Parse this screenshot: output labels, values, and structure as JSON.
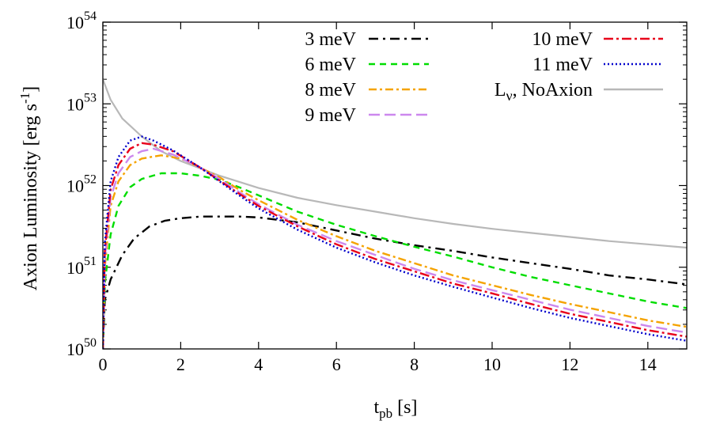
{
  "chart_data": {
    "type": "line",
    "xlabel": {
      "main": "t",
      "sub": "pb",
      "rest": " [s]"
    },
    "ylabel": "Axion Luminosity [erg s",
    "ylabel_sup": "-1",
    "ylabel_close": "]",
    "xlim": [
      0,
      15
    ],
    "ylim_log10": [
      50,
      54
    ],
    "yscale": "log",
    "x_ticks": [
      0,
      2,
      4,
      6,
      8,
      10,
      12,
      14
    ],
    "y_ticks": [
      {
        "base": "10",
        "exp": "50",
        "value": 50
      },
      {
        "base": "10",
        "exp": "51",
        "value": 51
      },
      {
        "base": "10",
        "exp": "52",
        "value": 52
      },
      {
        "base": "10",
        "exp": "53",
        "value": 53
      },
      {
        "base": "10",
        "exp": "54",
        "value": 54
      }
    ],
    "grid": false,
    "legend_position": "top-right",
    "series": [
      {
        "name": "3 meV",
        "color": "#000000",
        "dash": "12,6,3,6",
        "points": [
          [
            0,
            50
          ],
          [
            0.05,
            50.6
          ],
          [
            0.2,
            50.85
          ],
          [
            0.5,
            51.15
          ],
          [
            0.8,
            51.35
          ],
          [
            1.2,
            51.5
          ],
          [
            1.6,
            51.57
          ],
          [
            2,
            51.6
          ],
          [
            2.5,
            51.62
          ],
          [
            3,
            51.62
          ],
          [
            3.5,
            51.62
          ],
          [
            4,
            51.61
          ],
          [
            5,
            51.55
          ],
          [
            6,
            51.45
          ],
          [
            7,
            51.35
          ],
          [
            8,
            51.27
          ],
          [
            9,
            51.2
          ],
          [
            10,
            51.12
          ],
          [
            11,
            51.05
          ],
          [
            12,
            50.98
          ],
          [
            13,
            50.9
          ],
          [
            14,
            50.85
          ],
          [
            15,
            50.79
          ]
        ]
      },
      {
        "name": "6 meV",
        "color": "#00dd00",
        "dash": "8,6",
        "points": [
          [
            0,
            50
          ],
          [
            0.05,
            50.8
          ],
          [
            0.2,
            51.4
          ],
          [
            0.4,
            51.75
          ],
          [
            0.7,
            51.98
          ],
          [
            1,
            52.08
          ],
          [
            1.5,
            52.15
          ],
          [
            2,
            52.15
          ],
          [
            2.5,
            52.12
          ],
          [
            3,
            52.07
          ],
          [
            3.5,
            51.98
          ],
          [
            4,
            51.88
          ],
          [
            5,
            51.68
          ],
          [
            6,
            51.52
          ],
          [
            7,
            51.38
          ],
          [
            8,
            51.25
          ],
          [
            9,
            51.13
          ],
          [
            10,
            51.0
          ],
          [
            11,
            50.88
          ],
          [
            12,
            50.78
          ],
          [
            13,
            50.68
          ],
          [
            14,
            50.58
          ],
          [
            15,
            50.5
          ]
        ]
      },
      {
        "name": "8 meV",
        "color": "#f5a300",
        "dash": "10,4,3,4",
        "points": [
          [
            0,
            50
          ],
          [
            0.05,
            51.0
          ],
          [
            0.2,
            51.75
          ],
          [
            0.4,
            52.05
          ],
          [
            0.7,
            52.25
          ],
          [
            1,
            52.33
          ],
          [
            1.5,
            52.37
          ],
          [
            2,
            52.33
          ],
          [
            2.5,
            52.22
          ],
          [
            3,
            52.1
          ],
          [
            3.5,
            51.95
          ],
          [
            4,
            51.82
          ],
          [
            5,
            51.58
          ],
          [
            6,
            51.38
          ],
          [
            7,
            51.2
          ],
          [
            8,
            51.05
          ],
          [
            9,
            50.9
          ],
          [
            10,
            50.78
          ],
          [
            11,
            50.66
          ],
          [
            12,
            50.55
          ],
          [
            13,
            50.45
          ],
          [
            14,
            50.35
          ],
          [
            15,
            50.27
          ]
        ]
      },
      {
        "name": "9 meV",
        "color": "#cc88ee",
        "dash": "14,6",
        "points": [
          [
            0,
            50
          ],
          [
            0.05,
            51.1
          ],
          [
            0.2,
            51.85
          ],
          [
            0.4,
            52.15
          ],
          [
            0.7,
            52.35
          ],
          [
            1,
            52.42
          ],
          [
            1.3,
            52.45
          ],
          [
            1.8,
            52.38
          ],
          [
            2.5,
            52.22
          ],
          [
            3,
            52.08
          ],
          [
            3.5,
            51.92
          ],
          [
            4,
            51.77
          ],
          [
            5,
            51.52
          ],
          [
            6,
            51.32
          ],
          [
            7,
            51.15
          ],
          [
            8,
            50.98
          ],
          [
            9,
            50.84
          ],
          [
            10,
            50.72
          ],
          [
            11,
            50.6
          ],
          [
            12,
            50.48
          ],
          [
            13,
            50.38
          ],
          [
            14,
            50.28
          ],
          [
            15,
            50.2
          ]
        ]
      },
      {
        "name": "10 meV",
        "color": "#e8001a",
        "dash": "12,4,3,4",
        "points": [
          [
            0,
            50
          ],
          [
            0.05,
            51.2
          ],
          [
            0.2,
            51.95
          ],
          [
            0.4,
            52.25
          ],
          [
            0.7,
            52.45
          ],
          [
            1,
            52.52
          ],
          [
            1.3,
            52.5
          ],
          [
            1.8,
            52.42
          ],
          [
            2.5,
            52.22
          ],
          [
            3,
            52.06
          ],
          [
            3.5,
            51.9
          ],
          [
            4,
            51.75
          ],
          [
            5,
            51.5
          ],
          [
            6,
            51.28
          ],
          [
            7,
            51.1
          ],
          [
            8,
            50.95
          ],
          [
            9,
            50.8
          ],
          [
            10,
            50.68
          ],
          [
            11,
            50.55
          ],
          [
            12,
            50.43
          ],
          [
            13,
            50.33
          ],
          [
            14,
            50.23
          ],
          [
            15,
            50.15
          ]
        ]
      },
      {
        "name": "11 meV",
        "color": "#0000cc",
        "dash": "2,3",
        "points": [
          [
            0,
            50
          ],
          [
            0.05,
            51.3
          ],
          [
            0.2,
            52.05
          ],
          [
            0.4,
            52.35
          ],
          [
            0.7,
            52.55
          ],
          [
            1,
            52.6
          ],
          [
            1.3,
            52.55
          ],
          [
            1.8,
            52.43
          ],
          [
            2.5,
            52.22
          ],
          [
            3,
            52.05
          ],
          [
            3.5,
            51.88
          ],
          [
            4,
            51.72
          ],
          [
            5,
            51.46
          ],
          [
            6,
            51.24
          ],
          [
            7,
            51.06
          ],
          [
            8,
            50.9
          ],
          [
            9,
            50.76
          ],
          [
            10,
            50.63
          ],
          [
            11,
            50.5
          ],
          [
            12,
            50.38
          ],
          [
            13,
            50.28
          ],
          [
            14,
            50.18
          ],
          [
            15,
            50.1
          ]
        ]
      },
      {
        "name": "L",
        "name_sub": "ν",
        "name_rest": ", NoAxion",
        "color": "#b8b8b8",
        "dash": "",
        "points": [
          [
            0,
            53.3
          ],
          [
            0.2,
            53.05
          ],
          [
            0.5,
            52.82
          ],
          [
            1,
            52.6
          ],
          [
            1.5,
            52.42
          ],
          [
            2,
            52.3
          ],
          [
            3,
            52.12
          ],
          [
            4,
            51.97
          ],
          [
            5,
            51.85
          ],
          [
            6,
            51.76
          ],
          [
            7,
            51.68
          ],
          [
            8,
            51.6
          ],
          [
            9,
            51.53
          ],
          [
            10,
            51.47
          ],
          [
            11,
            51.42
          ],
          [
            12,
            51.37
          ],
          [
            13,
            51.32
          ],
          [
            14,
            51.28
          ],
          [
            15,
            51.24
          ]
        ]
      }
    ]
  }
}
